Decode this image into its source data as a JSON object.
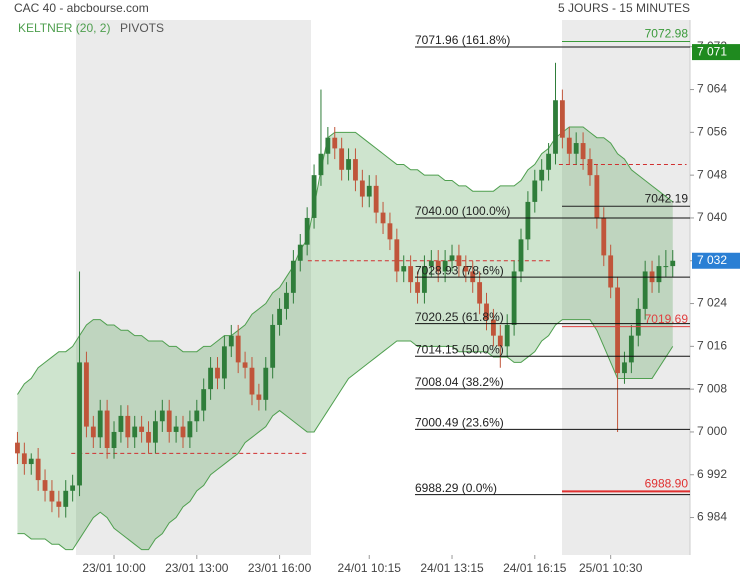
{
  "chart_data": {
    "type": "candlestick",
    "title": "CAC 40 - abcbourse.com",
    "subtitle": "5 JOURS - 15 MINUTES",
    "categories": [
      null,
      null,
      null,
      null,
      null,
      null,
      null,
      null,
      null,
      null,
      null,
      null,
      null,
      null,
      "23/01 10:00",
      null,
      null,
      null,
      null,
      null,
      null,
      null,
      null,
      null,
      null,
      null,
      "23/01 13:00",
      null,
      null,
      null,
      null,
      null,
      null,
      null,
      null,
      null,
      null,
      null,
      "23/01 16:00",
      null,
      null,
      null,
      null,
      null,
      null,
      null,
      null,
      null,
      null,
      null,
      null,
      "24/01 10:15",
      null,
      null,
      null,
      null,
      null,
      null,
      null,
      null,
      null,
      null,
      null,
      "24/01 13:15",
      null,
      null,
      null,
      null,
      null,
      null,
      null,
      null,
      null,
      null,
      null,
      "24/01 16:15",
      null,
      null,
      null,
      null,
      null,
      null,
      null,
      null,
      null,
      null,
      "25/01 10:30",
      null,
      null,
      null,
      null,
      null,
      null,
      null,
      null,
      null
    ],
    "open": [
      6998,
      6996,
      6994,
      6995,
      6991,
      6989,
      6987,
      6986,
      6989,
      6990,
      7013,
      7001,
      6999,
      7004,
      6997,
      7000,
      7003,
      6999,
      7001,
      7000,
      6998,
      7002,
      7004,
      7000,
      7001,
      6999,
      7002,
      7004,
      7008,
      7012,
      7010,
      7016,
      7018,
      7013,
      7012,
      7007,
      7006,
      7012,
      7020,
      7023,
      7026,
      7032,
      7035,
      7040,
      7048,
      7052,
      7055,
      7053,
      7049,
      7051,
      7047,
      7044,
      7046,
      7041,
      7039,
      7036,
      7030,
      7031,
      7028,
      7026,
      7031,
      7032,
      7030,
      7032,
      7033,
      7031,
      7030,
      7028,
      7024,
      7021,
      7018,
      7016,
      7020,
      7030,
      7036,
      7043,
      7047,
      7049,
      7052,
      7062,
      7055,
      7052,
      7054,
      7051,
      7048,
      7040,
      7033,
      7027,
      7011,
      7013,
      7018,
      7023,
      7030,
      7028,
      7031,
      7031
    ],
    "high": [
      7000,
      6998,
      6996,
      6997,
      6993,
      6991,
      6989,
      6991,
      6992,
      7030,
      7015,
      7003,
      7006,
      7006,
      7002,
      7005,
      7005,
      7003,
      7003,
      7002,
      7004,
      7006,
      7006,
      7003,
      7003,
      7004,
      7006,
      7010,
      7014,
      7014,
      7018,
      7020,
      7020,
      7015,
      7014,
      7009,
      7014,
      7022,
      7025,
      7028,
      7034,
      7037,
      7042,
      7050,
      7064,
      7057,
      7057,
      7055,
      7053,
      7053,
      7049,
      7048,
      7048,
      7043,
      7041,
      7038,
      7033,
      7033,
      7030,
      7033,
      7034,
      7034,
      7034,
      7035,
      7035,
      7033,
      7032,
      7030,
      7026,
      7023,
      7020,
      7022,
      7032,
      7038,
      7045,
      7049,
      7051,
      7054,
      7069,
      7064,
      7057,
      7056,
      7056,
      7053,
      7050,
      7042,
      7035,
      7029,
      7015,
      7020,
      7025,
      7032,
      7032,
      7033,
      7034,
      7034
    ],
    "low": [
      6994,
      6992,
      6992,
      6989,
      6987,
      6985,
      6984,
      6984,
      6987,
      6988,
      6999,
      6997,
      6997,
      6995,
      6995,
      6998,
      6997,
      6997,
      6998,
      6996,
      6996,
      7000,
      6998,
      6998,
      6997,
      6997,
      7000,
      7002,
      7006,
      7008,
      7008,
      7014,
      7011,
      7010,
      7005,
      7004,
      7004,
      7010,
      7018,
      7021,
      7024,
      7030,
      7033,
      7038,
      7046,
      7050,
      7051,
      7047,
      7047,
      7045,
      7042,
      7042,
      7039,
      7037,
      7034,
      7028,
      7028,
      7026,
      7024,
      7024,
      7029,
      7028,
      7028,
      7030,
      7029,
      7028,
      7026,
      7022,
      7019,
      7016,
      7012,
      7014,
      7018,
      7028,
      7034,
      7041,
      7045,
      7047,
      7050,
      7053,
      7050,
      7050,
      7049,
      7046,
      7038,
      7031,
      7025,
      7000,
      7009,
      7011,
      7016,
      7021,
      7026,
      7026,
      7029,
      7029
    ],
    "close": [
      6996,
      6994,
      6995,
      6991,
      6989,
      6987,
      6986,
      6989,
      6990,
      7013,
      7001,
      6999,
      7004,
      6997,
      7000,
      7003,
      6999,
      7001,
      7000,
      6998,
      7002,
      7004,
      7000,
      7001,
      6999,
      7002,
      7004,
      7008,
      7012,
      7010,
      7016,
      7018,
      7013,
      7012,
      7007,
      7006,
      7012,
      7020,
      7023,
      7026,
      7032,
      7035,
      7040,
      7048,
      7052,
      7055,
      7053,
      7049,
      7051,
      7047,
      7044,
      7046,
      7041,
      7039,
      7036,
      7030,
      7031,
      7028,
      7026,
      7031,
      7032,
      7030,
      7032,
      7033,
      7031,
      7030,
      7028,
      7024,
      7021,
      7018,
      7016,
      7020,
      7030,
      7036,
      7043,
      7047,
      7049,
      7052,
      7062,
      7055,
      7052,
      7054,
      7051,
      7048,
      7040,
      7033,
      7027,
      7011,
      7013,
      7018,
      7023,
      7030,
      7028,
      7031,
      7031,
      7032
    ],
    "up_color": "#2f7d3a",
    "down_color": "#c0553a",
    "keltner": {
      "name": "KELTNER (20, 2)",
      "color": "#4f9f4f",
      "upper": [
        7007,
        7009,
        7010,
        7012,
        7013,
        7014,
        7015,
        7015,
        7016,
        7018,
        7020,
        7021,
        7021,
        7020,
        7020,
        7019,
        7019,
        7018,
        7018,
        7017,
        7017,
        7017,
        7016,
        7016,
        7015,
        7015,
        7015,
        7016,
        7016,
        7017,
        7018,
        7018,
        7019,
        7020,
        7022,
        7023,
        7024,
        7026,
        7027,
        7029,
        7031,
        7034,
        7036,
        7042,
        7049,
        7055,
        7056,
        7056,
        7056,
        7056,
        7055,
        7054,
        7053,
        7052,
        7051,
        7050,
        7050,
        7049,
        7049,
        7048,
        7048,
        7048,
        7047,
        7047,
        7046,
        7046,
        7045,
        7045,
        7045,
        7045,
        7046,
        7046,
        7046,
        7047,
        7049,
        7050,
        7052,
        7053,
        7055,
        7056,
        7057,
        7057,
        7057,
        7056,
        7055,
        7055,
        7054,
        7052,
        7051,
        7049,
        7048,
        7047,
        7046,
        7045,
        7044,
        7043
      ],
      "lower": [
        6981,
        6981,
        6980,
        6980,
        6980,
        6979,
        6979,
        6978,
        6978,
        6980,
        6982,
        6984,
        6985,
        6984,
        6982,
        6981,
        6980,
        6979,
        6978,
        6978,
        6980,
        6981,
        6983,
        6984,
        6986,
        6987,
        6989,
        6990,
        6992,
        6993,
        6994,
        6995,
        6996,
        6998,
        6999,
        7000,
        7001,
        7003,
        7004,
        7003,
        7002,
        7001,
        7000,
        7000,
        7002,
        7004,
        7006,
        7008,
        7010,
        7011,
        7012,
        7013,
        7014,
        7015,
        7016,
        7017,
        7017,
        7017,
        7016,
        7016,
        7016,
        7016,
        7016,
        7016,
        7015,
        7015,
        7015,
        7015,
        7015,
        7014,
        7014,
        7014,
        7013,
        7013,
        7014,
        7015,
        7017,
        7018,
        7020,
        7021,
        7021,
        7021,
        7021,
        7021,
        7019,
        7016,
        7013,
        7010,
        7010,
        7010,
        7010,
        7010,
        7010,
        7012,
        7014,
        7016
      ]
    },
    "pivots": {
      "name": "PIVOTS",
      "color": "#d03030",
      "values": [
        6996,
        7032,
        7050
      ]
    },
    "fib_levels": [
      {
        "value": 7071.96,
        "label": "7071.96  (161.8%)"
      },
      {
        "value": 7040.0,
        "label": "7040.00  (100.0%)"
      },
      {
        "value": 7028.93,
        "label": "7028.93  (78.6%)"
      },
      {
        "value": 7020.25,
        "label": "7020.25  (61.8%)"
      },
      {
        "value": 7014.15,
        "label": "7014.15  (50.0%)"
      },
      {
        "value": 7008.04,
        "label": "7008.04  (38.2%)"
      },
      {
        "value": 7000.49,
        "label": "7000.49  (23.6%)"
      },
      {
        "value": 6988.29,
        "label": "6988.29  (0.0%)"
      }
    ],
    "markers": [
      {
        "value": 7072.98,
        "label": "7072.98",
        "color": "#3a9a3a"
      },
      {
        "value": 7042.19,
        "label": "7042.19",
        "color": "#222222"
      },
      {
        "value": 7019.69,
        "label": "7019.69",
        "color": "#e04040"
      },
      {
        "value": 6988.9,
        "label": "6988.90",
        "color": "#e03030"
      }
    ],
    "last_prices": [
      {
        "value": 7071,
        "label": "7 071",
        "color": "#1f8a1f"
      },
      {
        "value": 7032,
        "label": "7 032",
        "color": "#2a7fd4"
      }
    ],
    "ylim": [
      6977,
      7077
    ],
    "yticks": [
      {
        "value": 6984,
        "label": "6 984"
      },
      {
        "value": 6992,
        "label": "6 992"
      },
      {
        "value": 7000,
        "label": "7 000"
      },
      {
        "value": 7008,
        "label": "7 008"
      },
      {
        "value": 7016,
        "label": "7 016"
      },
      {
        "value": 7024,
        "label": "7 024"
      },
      {
        "value": 7032,
        "label": "7 032"
      },
      {
        "value": 7040,
        "label": "7 040"
      },
      {
        "value": 7048,
        "label": "7 048"
      },
      {
        "value": 7056,
        "label": "7 056"
      },
      {
        "value": 7064,
        "label": "7 064"
      },
      {
        "value": 7072,
        "label": "7 072"
      }
    ]
  }
}
